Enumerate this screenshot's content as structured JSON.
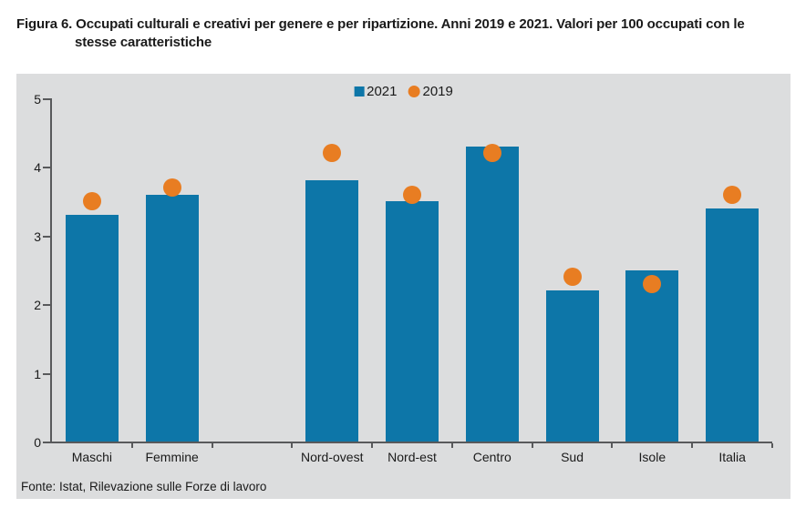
{
  "title": {
    "line1": "Figura 6. Occupati culturali e creativi per genere e per ripartizione. Anni 2019 e 2021. Valori per 100 occupati con le",
    "line2": "stesse caratteristiche"
  },
  "source": "Fonte: Istat, Rilevazione sulle Forze di lavoro",
  "colors": {
    "bar_2021": "#0d76a8",
    "dot_2019": "#e87d22",
    "panel_background": "#dcddde",
    "axis": "#58595b",
    "text": "#1a1a1a"
  },
  "chart_data": {
    "type": "bar",
    "title": "Figura 6. Occupati culturali e creativi per genere e per ripartizione. Anni 2019 e 2021. Valori per 100 occupati con le stesse caratteristiche",
    "xlabel": "",
    "ylabel": "",
    "categories": [
      "Maschi",
      "Femmine",
      "Nord-ovest",
      "Nord-est",
      "Centro",
      "Sud",
      "Isole",
      "Italia"
    ],
    "series": [
      {
        "name": "2021",
        "type": "bar",
        "color": "#0d76a8",
        "values": [
          3.3,
          3.6,
          3.8,
          3.5,
          4.3,
          2.2,
          2.5,
          3.4
        ]
      },
      {
        "name": "2019",
        "type": "point",
        "color": "#e87d22",
        "values": [
          3.5,
          3.7,
          4.2,
          3.6,
          4.2,
          2.4,
          2.3,
          3.6
        ]
      }
    ],
    "ylim": [
      0,
      5
    ],
    "yticks": [
      0,
      1,
      2,
      3,
      4,
      5
    ],
    "grid": false,
    "legend_position": "top-center",
    "layout": {
      "total_slots": 9,
      "category_slots": [
        0,
        1,
        3,
        4,
        5,
        6,
        7,
        8
      ]
    }
  }
}
